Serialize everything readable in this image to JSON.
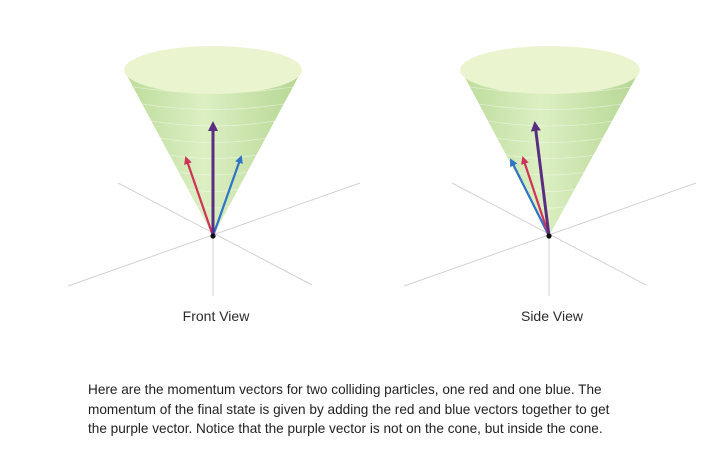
{
  "views": [
    {
      "id": "front",
      "label": "Front View"
    },
    {
      "id": "side",
      "label": "Side View"
    }
  ],
  "vectors": [
    {
      "name": "red",
      "color": "#d0325a"
    },
    {
      "name": "blue",
      "color": "#2f73c8"
    },
    {
      "name": "purple",
      "color": "#5a2d82"
    }
  ],
  "cone_colors": {
    "top_fill": "#eaf5cf",
    "side_light": "#d9edbc",
    "side_dark": "#b7d995",
    "axes": "#d3d3d3"
  },
  "caption": {
    "lines": [
      "Here are the momentum vectors for two colliding particles, one red and one blue. The",
      "momentum of the final state is given by adding the red and blue vectors together to get",
      "the purple vector. Notice that the purple vector is not on the cone, but inside the cone."
    ]
  }
}
